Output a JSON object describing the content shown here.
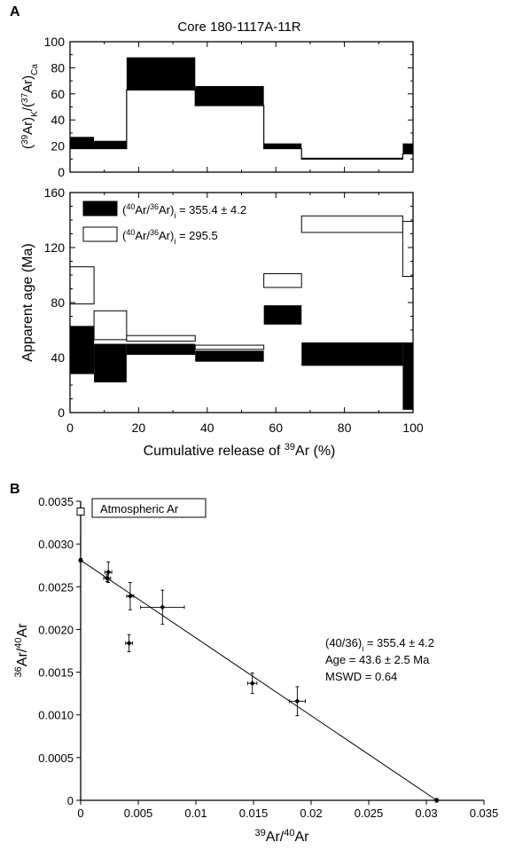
{
  "panels": {
    "a_letter": "A",
    "b_letter": "B"
  },
  "chart_data": [
    {
      "id": "a-top",
      "type": "area",
      "title": "Core 180-1117A-11R",
      "ylabel_parts": [
        "(",
        "39",
        "Ar)",
        "K",
        "/(",
        "37",
        "Ar)",
        "Ca"
      ],
      "ylim": [
        0,
        100
      ],
      "yticks": [
        0,
        20,
        40,
        60,
        80,
        100
      ],
      "xlim": [
        0,
        100
      ],
      "steps": [
        {
          "x0": 0,
          "x1": 7,
          "low": 18,
          "high": 27
        },
        {
          "x0": 7,
          "x1": 16.5,
          "low": 18,
          "high": 24
        },
        {
          "x0": 16.5,
          "x1": 36.5,
          "low": 63,
          "high": 88
        },
        {
          "x0": 36.5,
          "x1": 56.5,
          "low": 51,
          "high": 66
        },
        {
          "x0": 56.5,
          "x1": 67.5,
          "low": 18,
          "high": 22
        },
        {
          "x0": 67.5,
          "x1": 97,
          "low": 10,
          "high": 11
        },
        {
          "x0": 97,
          "x1": 100,
          "low": 14,
          "high": 22
        }
      ]
    },
    {
      "id": "a-bottom",
      "type": "area",
      "ylabel": "Apparent age (Ma)",
      "xlabel_parts": [
        "Cumulative release of ",
        "39",
        "Ar (%)"
      ],
      "xlim": [
        0,
        100
      ],
      "ylim": [
        0,
        160
      ],
      "xticks": [
        0,
        20,
        40,
        60,
        80,
        100
      ],
      "yticks": [
        0,
        40,
        80,
        120,
        160
      ],
      "legend": [
        {
          "swatch": "filled",
          "label_parts": [
            "(",
            "40",
            "Ar/",
            "36",
            "Ar)",
            "i",
            " = 355.4 ± 4.2"
          ]
        },
        {
          "swatch": "open",
          "label_parts": [
            "(",
            "40",
            "Ar/",
            "36",
            "Ar)",
            "i",
            " = 295.5"
          ]
        }
      ],
      "series": [
        {
          "name": "(40Ar/36Ar)i = 295.5",
          "style": "open",
          "steps": [
            {
              "x0": 0,
              "x1": 7,
              "low": 79,
              "high": 106
            },
            {
              "x0": 7,
              "x1": 16.5,
              "low": 53,
              "high": 74
            },
            {
              "x0": 16.5,
              "x1": 36.5,
              "low": 52,
              "high": 56
            },
            {
              "x0": 36.5,
              "x1": 56.5,
              "low": 46,
              "high": 49
            },
            {
              "x0": 56.5,
              "x1": 67.5,
              "low": 91,
              "high": 101
            },
            {
              "x0": 67.5,
              "x1": 97,
              "low": 131,
              "high": 143
            },
            {
              "x0": 97,
              "x1": 100,
              "low": 99,
              "high": 139
            }
          ]
        },
        {
          "name": "(40Ar/36Ar)i = 355.4 ± 4.2",
          "style": "filled",
          "steps": [
            {
              "x0": 0,
              "x1": 7,
              "low": 28,
              "high": 63
            },
            {
              "x0": 7,
              "x1": 16.5,
              "low": 22,
              "high": 50
            },
            {
              "x0": 16.5,
              "x1": 36.5,
              "low": 42,
              "high": 50
            },
            {
              "x0": 36.5,
              "x1": 56.5,
              "low": 37,
              "high": 45
            },
            {
              "x0": 56.5,
              "x1": 67.5,
              "low": 64,
              "high": 78
            },
            {
              "x0": 67.5,
              "x1": 97,
              "low": 34,
              "high": 51
            },
            {
              "x0": 97,
              "x1": 100,
              "low": 2,
              "high": 51
            }
          ]
        }
      ]
    },
    {
      "id": "b",
      "type": "scatter",
      "xlabel_parts": [
        "39",
        "Ar/",
        "40",
        "Ar"
      ],
      "ylabel_parts": [
        "36",
        "Ar/",
        "40",
        "Ar"
      ],
      "xlim": [
        0,
        0.035
      ],
      "ylim": [
        0,
        0.0035
      ],
      "xticks": [
        "0",
        "0.005",
        "0.01",
        "0.015",
        "0.02",
        "0.025",
        "0.03",
        "0.035"
      ],
      "yticks": [
        "0",
        "0.0005",
        "0.0010",
        "0.0015",
        "0.0020",
        "0.0025",
        "0.0030",
        "0.0035"
      ],
      "points": [
        {
          "x": 0.0,
          "y": 0.00281,
          "xerr": 0.0001,
          "yerr": 2e-05
        },
        {
          "x": 0.0023,
          "y": 0.0026,
          "xerr": 0.0003,
          "yerr": 4e-05
        },
        {
          "x": 0.0024,
          "y": 0.00267,
          "xerr": 0.0003,
          "yerr": 0.00012
        },
        {
          "x": 0.0043,
          "y": 0.00239,
          "xerr": 0.0003,
          "yerr": 0.00016
        },
        {
          "x": 0.0042,
          "y": 0.00184,
          "xerr": 0.0003,
          "yerr": 0.0001
        },
        {
          "x": 0.0071,
          "y": 0.00226,
          "xerr": 0.0019,
          "yerr": 0.0002
        },
        {
          "x": 0.0149,
          "y": 0.00137,
          "xerr": 0.0004,
          "yerr": 0.00012
        },
        {
          "x": 0.0188,
          "y": 0.00116,
          "xerr": 0.0007,
          "yerr": 0.00017
        },
        {
          "x": 0.0309,
          "y": 0.0,
          "xerr": 0.0001,
          "yerr": 2e-05
        }
      ],
      "fit_line": {
        "x0": 0.0,
        "y0": 0.00281,
        "x1": 0.0309,
        "y1": 0.0
      },
      "atmospheric_marker": {
        "x": 0.0,
        "y": 0.00338,
        "label": "Atmospheric Ar"
      },
      "annotations": [
        "(40/36)",
        "i",
        " = 355.4 ± 4.2",
        "Age = 43.6 ± 2.5 Ma",
        "MSWD = 0.64"
      ]
    }
  ]
}
